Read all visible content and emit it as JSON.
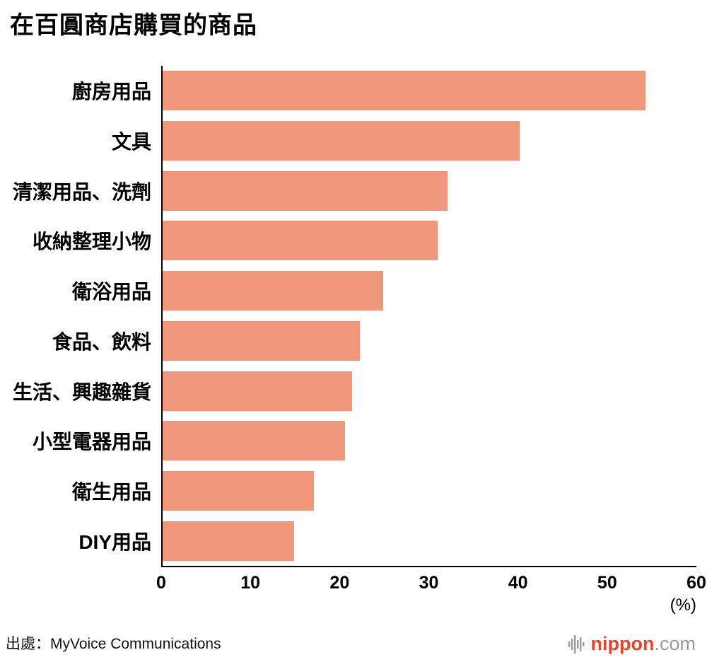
{
  "title": "在百圓商店購買的商品",
  "source": "出處：MyVoice Communications",
  "axis_unit": "(%)",
  "brand": {
    "name": "nippon",
    "suffix": ".com",
    "red": "#E5462D",
    "mark_gray": "#9b9b9b"
  },
  "chart_data": {
    "type": "bar",
    "orientation": "horizontal",
    "title": "在百圓商店購買的商品",
    "xlabel": "(%)",
    "categories": [
      "廚房用品",
      "文具",
      "清潔用品、洗劑",
      "收納整理小物",
      "衛浴用品",
      "食品、飲料",
      "生活、興趣雜貨",
      "小型電器用品",
      "衛生用品",
      "DIY用品"
    ],
    "values": [
      54.3,
      40.2,
      32.1,
      31.0,
      24.9,
      22.3,
      21.4,
      20.6,
      17.1,
      14.9
    ],
    "xlim": [
      0,
      60
    ],
    "xticks": [
      0,
      10,
      20,
      30,
      40,
      50,
      60
    ],
    "bar_color": "#F0977B",
    "grid": false,
    "legend": false
  }
}
